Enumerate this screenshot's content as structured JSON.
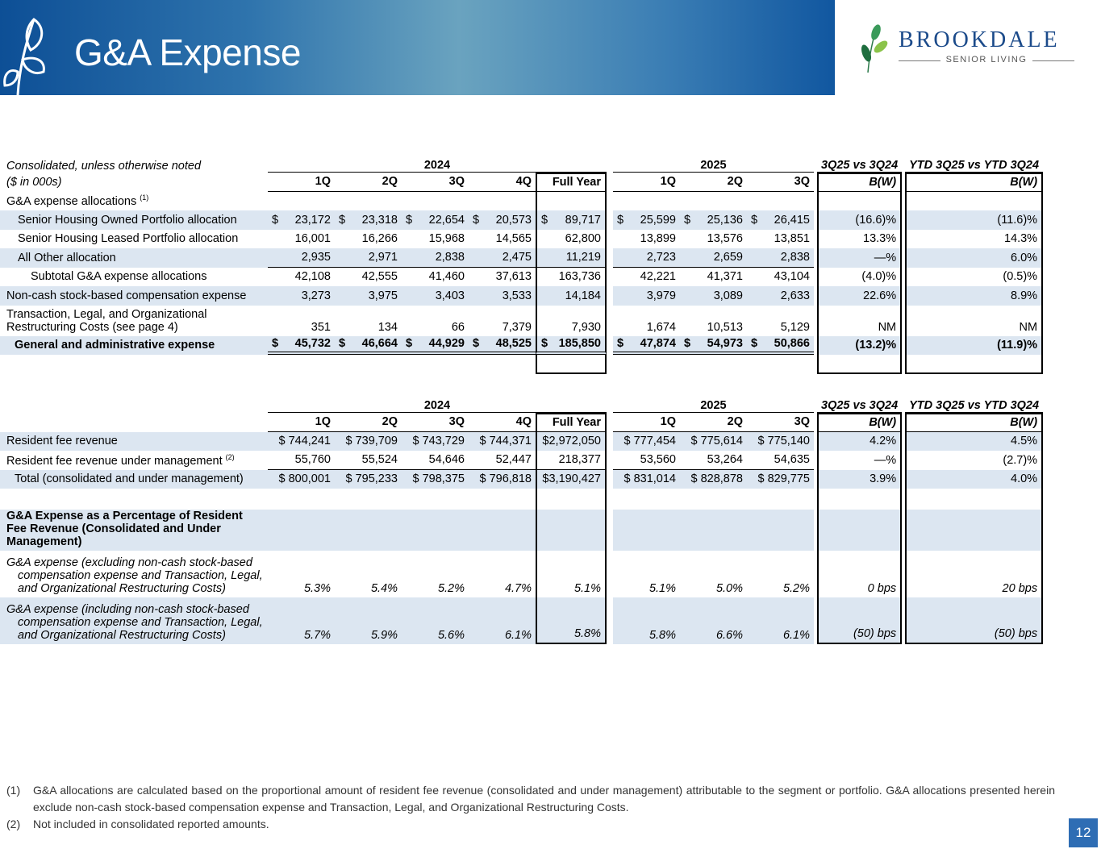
{
  "header": {
    "title": "G&A Expense",
    "logo_brand": "BROOKDALE",
    "logo_sub": "SENIOR LIVING"
  },
  "colors": {
    "banner": "#0d4f96",
    "row_band": "#dce6f1",
    "page_box": "#2e6db4"
  },
  "table1": {
    "note": "Consolidated, unless otherwise noted",
    "units": "($ in 000s)",
    "year1": "2024",
    "year2": "2025",
    "bw_header": "3Q25 vs 3Q24",
    "ytd_header": "YTD 3Q25 vs YTD 3Q24",
    "cols": [
      "1Q",
      "2Q",
      "3Q",
      "4Q",
      "Full Year",
      "1Q",
      "2Q",
      "3Q",
      "B(W)",
      "B(W)"
    ],
    "rows": [
      {
        "label": "G&A expense allocations",
        "sup": "(1)",
        "vals": [
          "",
          "",
          "",
          "",
          "",
          "",
          "",
          "",
          "",
          ""
        ]
      },
      {
        "label": "Senior Housing Owned Portfolio allocation",
        "cls": "blue",
        "ind": "ind1",
        "dollar": true,
        "vals": [
          "$ 23,172",
          "$ 23,318",
          "$ 22,654",
          "$ 20,573",
          "$ 89,717",
          "$ 25,599",
          "$ 25,136",
          "$ 26,415",
          "(16.6)%",
          "(11.6)%"
        ]
      },
      {
        "label": "Senior Housing Leased Portfolio allocation",
        "ind": "ind1",
        "vals": [
          "16,001",
          "16,266",
          "15,968",
          "14,565",
          "62,800",
          "13,899",
          "13,576",
          "13,851",
          "13.3%",
          "14.3%"
        ]
      },
      {
        "label": "All Other allocation",
        "cls": "blue under",
        "ind": "ind1",
        "vals": [
          "2,935",
          "2,971",
          "2,838",
          "2,475",
          "11,219",
          "2,723",
          "2,659",
          "2,838",
          "—%",
          "6.0%"
        ]
      },
      {
        "label": "Subtotal G&A expense allocations",
        "ind": "ind2",
        "vals": [
          "42,108",
          "42,555",
          "41,460",
          "37,613",
          "163,736",
          "42,221",
          "41,371",
          "43,104",
          "(4.0)%",
          "(0.5)%"
        ]
      },
      {
        "label": "Non-cash stock-based compensation expense",
        "cls": "blue",
        "vals": [
          "3,273",
          "3,975",
          "3,403",
          "3,533",
          "14,184",
          "3,979",
          "3,089",
          "2,633",
          "22.6%",
          "8.9%"
        ]
      },
      {
        "label": "Transaction, Legal, and Organizational Restructuring Costs (see page 4)",
        "ml": true,
        "vals": [
          "351",
          "134",
          "66",
          "7,379",
          "7,930",
          "1,674",
          "10,513",
          "5,129",
          "NM",
          "NM"
        ]
      },
      {
        "label": "General and administrative expense",
        "cls": "blue bold dbl",
        "ind": "ind0b",
        "dollar": true,
        "vals": [
          "$ 45,732",
          "$ 46,664",
          "$ 44,929",
          "$ 48,525",
          "$ 185,850",
          "$ 47,874",
          "$ 54,973",
          "$ 50,866",
          "(13.2)%",
          "(11.9)%"
        ]
      },
      {
        "label": "",
        "cls": "last spacer",
        "vals": [
          "",
          "",
          "",
          "",
          "",
          "",
          "",
          "",
          "",
          ""
        ]
      }
    ]
  },
  "table2": {
    "year1": "2024",
    "year2": "2025",
    "bw_header": "3Q25 vs 3Q24",
    "ytd_header": "YTD 3Q25 vs YTD 3Q24",
    "cols": [
      "1Q",
      "2Q",
      "3Q",
      "4Q",
      "Full Year",
      "1Q",
      "2Q",
      "3Q",
      "B(W)",
      "B(W)"
    ],
    "rows": [
      {
        "label": "Resident fee revenue",
        "cls": "blue",
        "vals": [
          "$ 744,241",
          "$ 739,709",
          "$ 743,729",
          "$ 744,371",
          "$2,972,050",
          "$ 777,454",
          "$ 775,614",
          "$ 775,140",
          "4.2%",
          "4.5%"
        ]
      },
      {
        "label": "Resident fee revenue under management",
        "sup": "(2)",
        "cls": "under",
        "vals": [
          "55,760",
          "55,524",
          "54,646",
          "52,447",
          "218,377",
          "53,560",
          "53,264",
          "54,635",
          "—%",
          "(2.7)%"
        ]
      },
      {
        "label": "Total (consolidated and under management)",
        "cls": "blue",
        "ind": "ind0b",
        "vals": [
          "$ 800,001",
          "$ 795,233",
          "$ 798,375",
          "$ 796,818",
          "$3,190,427",
          "$ 831,014",
          "$ 828,878",
          "$ 829,775",
          "3.9%",
          "4.0%"
        ]
      },
      {
        "label": "",
        "cls": "spacer",
        "vals": [
          "",
          "",
          "",
          "",
          "",
          "",
          "",
          "",
          "",
          ""
        ]
      },
      {
        "label": "G&A Expense as a Percentage of Resident Fee Revenue (Consolidated and Under Management)",
        "cls": "blue bold",
        "ml": true,
        "vals": [
          "",
          "",
          "",
          "",
          "",
          "",
          "",
          "",
          "",
          ""
        ]
      },
      {
        "label": "G&A expense (excluding non-cash stock-based compensation expense and Transaction, Legal, and Organizational Restructuring Costs)",
        "cls": "ital",
        "ml": true,
        "hang": true,
        "vals": [
          "5.3%",
          "5.4%",
          "5.2%",
          "4.7%",
          "5.1%",
          "5.1%",
          "5.0%",
          "5.2%",
          "0 bps",
          "20 bps"
        ]
      },
      {
        "label": "G&A expense (including non-cash stock-based compensation expense and Transaction, Legal, and Organizational Restructuring Costs)",
        "cls": "blue ital last",
        "ml": true,
        "hang": true,
        "vals": [
          "5.7%",
          "5.9%",
          "5.6%",
          "6.1%",
          "5.8%",
          "5.8%",
          "6.6%",
          "6.1%",
          "(50) bps",
          "(50) bps"
        ]
      }
    ]
  },
  "footnotes": [
    {
      "num": "(1)",
      "text": "G&A allocations are calculated based on the proportional amount of resident fee revenue (consolidated and under management) attributable to the segment or portfolio. G&A allocations presented herein exclude non-cash stock-based compensation expense and Transaction, Legal, and Organizational Restructuring Costs."
    },
    {
      "num": "(2)",
      "text": "Not included in consolidated reported amounts."
    }
  ],
  "page_number": "12"
}
